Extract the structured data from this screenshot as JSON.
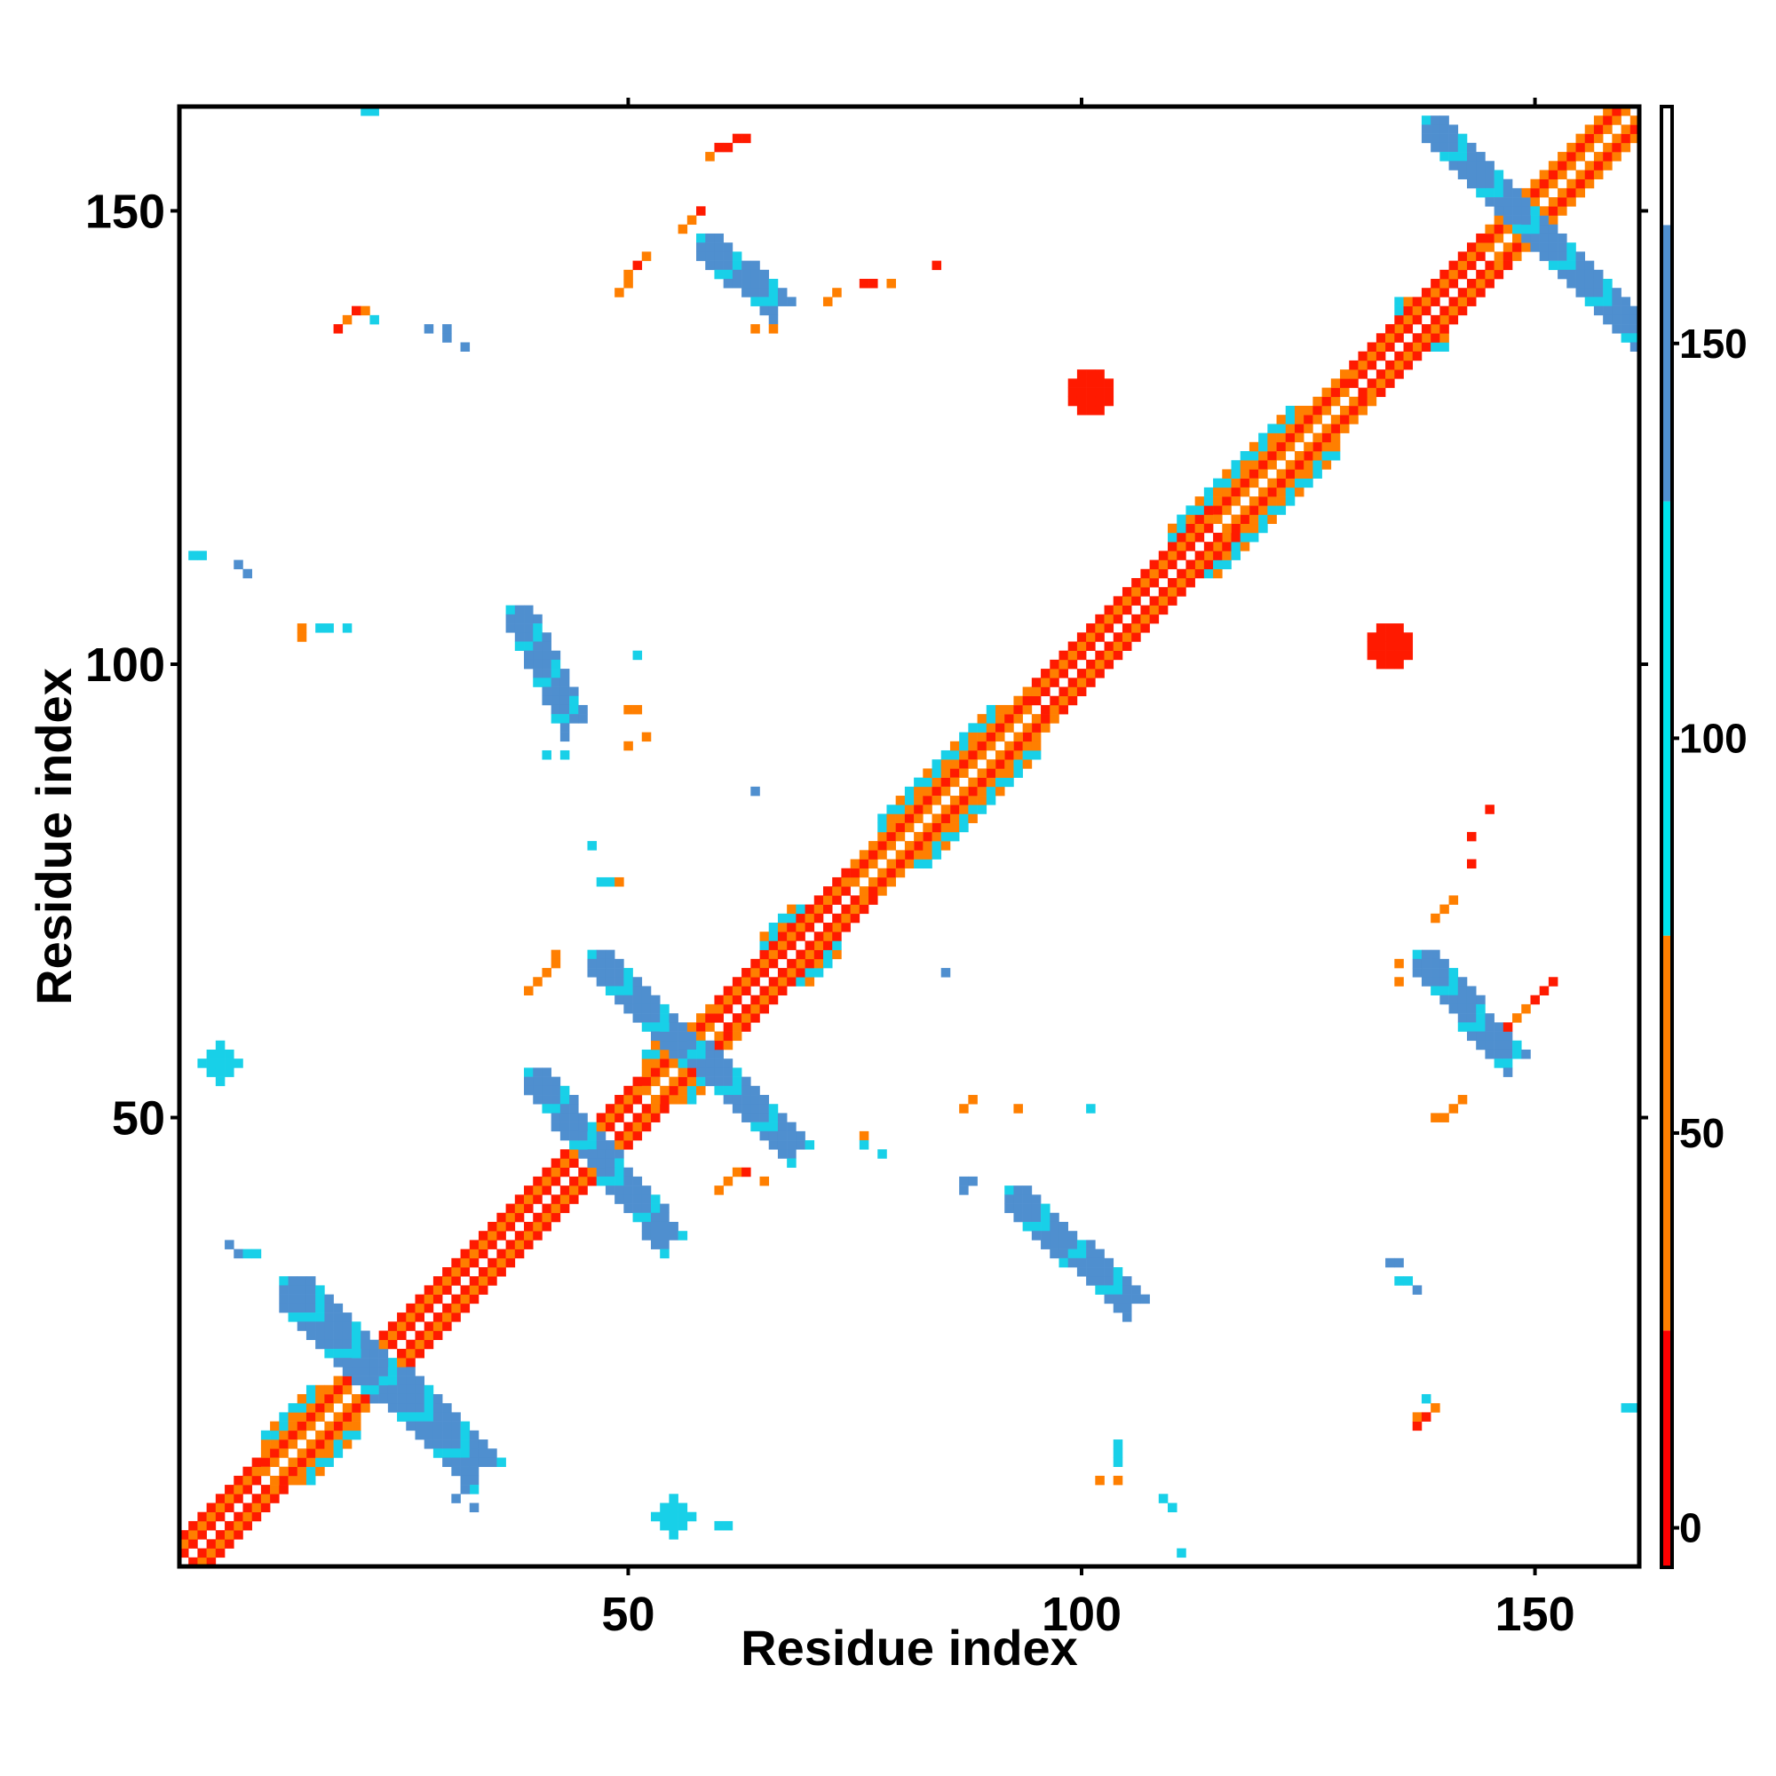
{
  "chart_data": {
    "type": "heatmap",
    "xlabel": "Residue index",
    "ylabel": "Residue index",
    "xlim": [
      1,
      161
    ],
    "ylim": [
      1,
      161
    ],
    "xticks": [
      50,
      100,
      150
    ],
    "yticks": [
      50,
      100,
      150
    ],
    "grid": false,
    "colorbar": {
      "placement": "right",
      "range": [
        -5,
        180
      ],
      "ticks": [
        0,
        50,
        100,
        150
      ],
      "bands": [
        {
          "from": -5,
          "to": 25,
          "color": "#ff0000"
        },
        {
          "from": 25,
          "to": 75,
          "color": "#ff7f00"
        },
        {
          "from": 75,
          "to": 130,
          "color": "#00e5ee"
        },
        {
          "from": 130,
          "to": 165,
          "color": "#4f8fcf"
        },
        {
          "from": 165,
          "to": 180,
          "color": "#ffffff"
        }
      ]
    },
    "value_colors": {
      "red": "#ff1a00",
      "orange": "#ff7f00",
      "cyan": "#18d0e8",
      "blue": "#4f8fcf",
      "deep_blue": "#5a7fc0"
    },
    "diagonal": {
      "from": 1,
      "to": 161,
      "segments": [
        {
          "from": 1,
          "to": 10,
          "value": 10
        },
        {
          "from": 10,
          "to": 20,
          "value": 45
        },
        {
          "from": 20,
          "to": 40,
          "value": 12
        },
        {
          "from": 40,
          "to": 52,
          "value": 10
        },
        {
          "from": 52,
          "to": 60,
          "value": 40
        },
        {
          "from": 60,
          "to": 75,
          "value": 10
        },
        {
          "from": 75,
          "to": 95,
          "value": 50
        },
        {
          "from": 95,
          "to": 115,
          "value": 10
        },
        {
          "from": 115,
          "to": 130,
          "value": 50
        },
        {
          "from": 130,
          "to": 145,
          "value": 12
        },
        {
          "from": 145,
          "to": 161,
          "value": 45
        }
      ]
    },
    "strands": [
      {
        "from": [
          12,
          32
        ],
        "to": [
          33,
          12
        ],
        "width": 4,
        "value": 150
      },
      {
        "from": [
          37,
          106
        ],
        "to": [
          43,
          94
        ],
        "width": 3,
        "value": 150
      },
      {
        "from": [
          39,
          55
        ],
        "to": [
          54,
          37
        ],
        "width": 3,
        "value": 150
      },
      {
        "from": [
          46,
          68
        ],
        "to": [
          68,
          47
        ],
        "width": 3,
        "value": 150
      },
      {
        "from": [
          58,
          147
        ],
        "to": [
          66,
          140
        ],
        "width": 3,
        "value": 150
      },
      {
        "from": [
          92,
          42
        ],
        "to": [
          105,
          30
        ],
        "width": 3,
        "value": 150
      },
      {
        "from": [
          137,
          68
        ],
        "to": [
          147,
          57
        ],
        "width": 3,
        "value": 150
      },
      {
        "from": [
          138,
          160
        ],
        "to": [
          161,
          137
        ],
        "width": 3,
        "value": 150
      }
    ],
    "helix_blocks": [
      {
        "from": 10,
        "to": 20,
        "value": 100
      },
      {
        "from": 52,
        "to": 60,
        "value": 100
      },
      {
        "from": 65,
        "to": 73,
        "value": 100
      },
      {
        "from": 78,
        "to": 95,
        "value": 100
      },
      {
        "from": 110,
        "to": 128,
        "value": 100
      },
      {
        "from": 135,
        "to": 140,
        "value": 100
      }
    ],
    "blobs": [
      {
        "x": 101,
        "y": 130,
        "r": 2.5,
        "value": 5
      },
      {
        "x": 134,
        "y": 102,
        "r": 2.5,
        "value": 5
      },
      {
        "x": 55,
        "y": 6,
        "r": 2,
        "value": 100
      },
      {
        "x": 5,
        "y": 56,
        "r": 2,
        "value": 100
      }
    ],
    "scattered_points": [
      [
        21,
        161,
        100
      ],
      [
        22,
        161,
        100
      ],
      [
        62,
        158,
        10
      ],
      [
        63,
        158,
        10
      ],
      [
        60,
        157,
        10
      ],
      [
        61,
        157,
        10
      ],
      [
        59,
        156,
        40
      ],
      [
        58,
        150,
        10
      ],
      [
        57,
        149,
        40
      ],
      [
        56,
        148,
        40
      ],
      [
        52,
        145,
        40
      ],
      [
        51,
        144,
        10
      ],
      [
        50,
        143,
        40
      ],
      [
        50,
        142,
        40
      ],
      [
        49,
        141,
        40
      ],
      [
        73,
        141,
        40
      ],
      [
        72,
        140,
        40
      ],
      [
        76,
        142,
        10
      ],
      [
        77,
        142,
        10
      ],
      [
        79,
        142,
        40
      ],
      [
        84,
        144,
        10
      ],
      [
        64,
        137,
        40
      ],
      [
        66,
        137,
        40
      ],
      [
        19,
        138,
        40
      ],
      [
        20,
        139,
        10
      ],
      [
        21,
        139,
        40
      ],
      [
        18,
        137,
        10
      ],
      [
        22,
        138,
        100
      ],
      [
        28,
        137,
        150
      ],
      [
        30,
        137,
        150
      ],
      [
        30,
        136,
        150
      ],
      [
        32,
        135,
        150
      ],
      [
        2,
        112,
        100
      ],
      [
        3,
        112,
        100
      ],
      [
        7,
        111,
        150
      ],
      [
        8,
        110,
        150
      ],
      [
        14,
        104,
        40
      ],
      [
        14,
        103,
        40
      ],
      [
        16,
        104,
        100
      ],
      [
        17,
        104,
        100
      ],
      [
        19,
        104,
        100
      ],
      [
        51,
        101,
        100
      ],
      [
        50,
        95,
        40
      ],
      [
        51,
        95,
        40
      ],
      [
        50,
        91,
        40
      ],
      [
        52,
        92,
        40
      ],
      [
        41,
        90,
        100
      ],
      [
        43,
        90,
        100
      ],
      [
        64,
        86,
        150
      ],
      [
        46,
        80,
        100
      ],
      [
        47,
        76,
        100
      ],
      [
        48,
        76,
        100
      ],
      [
        49,
        76,
        40
      ],
      [
        42,
        68,
        40
      ],
      [
        42,
        67,
        40
      ],
      [
        41,
        66,
        40
      ],
      [
        40,
        65,
        40
      ],
      [
        39,
        64,
        40
      ],
      [
        85,
        66,
        150
      ],
      [
        145,
        84,
        10
      ],
      [
        143,
        81,
        10
      ],
      [
        143,
        78,
        10
      ],
      [
        141,
        74,
        40
      ],
      [
        140,
        73,
        40
      ],
      [
        139,
        72,
        40
      ],
      [
        135,
        67,
        40
      ],
      [
        135,
        65,
        40
      ],
      [
        152,
        65,
        10
      ],
      [
        151,
        64,
        10
      ],
      [
        150,
        63,
        10
      ],
      [
        149,
        62,
        40
      ],
      [
        148,
        61,
        40
      ],
      [
        147,
        60,
        10
      ],
      [
        142,
        52,
        40
      ],
      [
        141,
        51,
        40
      ],
      [
        140,
        50,
        40
      ],
      [
        139,
        50,
        40
      ],
      [
        88,
        52,
        40
      ],
      [
        87,
        51,
        40
      ],
      [
        93,
        51,
        40
      ],
      [
        101,
        51,
        100
      ],
      [
        76,
        48,
        40
      ],
      [
        76,
        47,
        100
      ],
      [
        78,
        46,
        100
      ],
      [
        87,
        43,
        150
      ],
      [
        87,
        42,
        150
      ],
      [
        88,
        43,
        150
      ],
      [
        62,
        44,
        40
      ],
      [
        61,
        43,
        40
      ],
      [
        60,
        42,
        40
      ],
      [
        63,
        44,
        10
      ],
      [
        65,
        43,
        40
      ],
      [
        6,
        36,
        150
      ],
      [
        7,
        35,
        150
      ],
      [
        8,
        35,
        100
      ],
      [
        9,
        35,
        100
      ],
      [
        134,
        34,
        150
      ],
      [
        135,
        34,
        150
      ],
      [
        135,
        32,
        100
      ],
      [
        136,
        32,
        100
      ],
      [
        137,
        31,
        150
      ],
      [
        137,
        16,
        10
      ],
      [
        137,
        17,
        40
      ],
      [
        138,
        17,
        10
      ],
      [
        139,
        18,
        40
      ],
      [
        138,
        19,
        100
      ],
      [
        160,
        18,
        100
      ],
      [
        161,
        18,
        100
      ],
      [
        104,
        13,
        100
      ],
      [
        104,
        14,
        100
      ],
      [
        104,
        12,
        100
      ],
      [
        102,
        10,
        40
      ],
      [
        104,
        10,
        40
      ],
      [
        33,
        7,
        150
      ],
      [
        31,
        8,
        150
      ],
      [
        32,
        9,
        150
      ],
      [
        109,
        8,
        100
      ],
      [
        110,
        7,
        100
      ],
      [
        111,
        2,
        100
      ],
      [
        60,
        5,
        100
      ],
      [
        61,
        5,
        100
      ]
    ]
  }
}
